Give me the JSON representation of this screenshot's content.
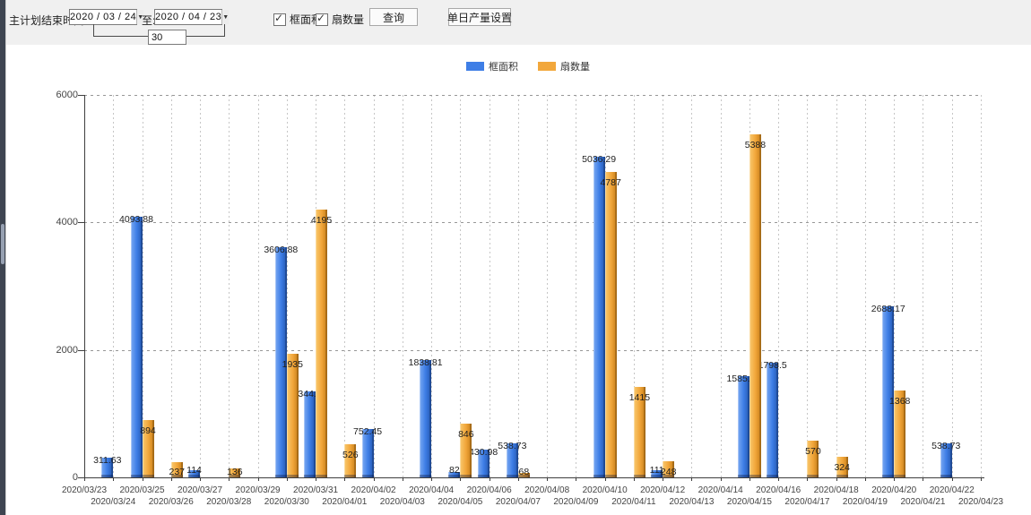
{
  "toolbar": {
    "plan_end_label": "主计划结束时间:",
    "date_from": "2020 / 03 / 24",
    "to_label": "至:",
    "date_to": "2020 / 04 / 23",
    "days_value": "30",
    "checkbox_frame": {
      "label": "框面积",
      "checked": true
    },
    "checkbox_sash": {
      "label": "扇数量",
      "checked": true
    },
    "query_label": "查询",
    "daily_output_label": "单日产量设置"
  },
  "icons": {
    "dropdown_arrow": "▼",
    "check_mark": "✓"
  },
  "legend_colors": {
    "frame_area": "#3E7EE6",
    "sash_count": "#F2A73B"
  },
  "chart_data": {
    "type": "bar",
    "title": "",
    "xlabel": "",
    "ylabel": "",
    "ylim": [
      0,
      6000
    ],
    "yticks": [
      0,
      2000,
      4000,
      6000
    ],
    "grid": true,
    "legend_position": "top-center",
    "categories": [
      "2020/03/23",
      "2020/03/24",
      "2020/03/25",
      "2020/03/26",
      "2020/03/27",
      "2020/03/28",
      "2020/03/29",
      "2020/03/30",
      "2020/03/31",
      "2020/04/01",
      "2020/04/02",
      "2020/04/03",
      "2020/04/04",
      "2020/04/05",
      "2020/04/06",
      "2020/04/07",
      "2020/04/08",
      "2020/04/09",
      "2020/04/10",
      "2020/04/11",
      "2020/04/12",
      "2020/04/13",
      "2020/04/14",
      "2020/04/15",
      "2020/04/16",
      "2020/04/17",
      "2020/04/18",
      "2020/04/19",
      "2020/04/20",
      "2020/04/21",
      "2020/04/22",
      "2020/04/23"
    ],
    "series": [
      {
        "name": "框面积",
        "key": "frame-area",
        "color": "#3E7EE6",
        "color_light": "#7AA9F2",
        "color_dark": "#2356B0",
        "values": [
          null,
          "311.63",
          "4093.88",
          null,
          "114",
          null,
          null,
          "3606.88",
          "1344.95",
          null,
          "752.45",
          null,
          "1838.81",
          "82",
          "430.98",
          "538.73",
          null,
          null,
          "5036.29",
          null,
          "111",
          null,
          null,
          "1585.96",
          "1798.5",
          null,
          null,
          null,
          "2688.17",
          null,
          "538.73",
          null
        ]
      },
      {
        "name": "扇数量",
        "key": "sash-count",
        "color": "#F2A73B",
        "color_light": "#F9C96F",
        "color_dark": "#C87F18",
        "values": [
          null,
          null,
          "894",
          "237",
          null,
          "136",
          null,
          "1935",
          "4195",
          "526",
          null,
          null,
          null,
          "846",
          null,
          "68",
          null,
          null,
          "4787",
          "1415",
          "248",
          null,
          null,
          "5388",
          null,
          "570",
          "324",
          null,
          "1368",
          null,
          null,
          null
        ]
      }
    ]
  }
}
